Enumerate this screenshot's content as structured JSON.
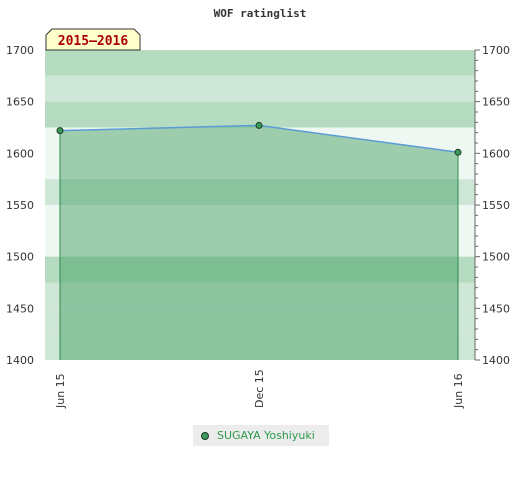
{
  "chart_data": {
    "type": "line",
    "title": "WOF ratinglist",
    "season_label": "2015–2016",
    "x_labels": [
      "Jun 15",
      "Dec 15",
      "Jun 16"
    ],
    "y_ticks": [
      1700,
      1650,
      1600,
      1550,
      1500,
      1450,
      1400
    ],
    "ylim": [
      1400,
      1700
    ],
    "grid": true,
    "legend_position": "bottom-center",
    "series": [
      {
        "name": "SUGAYA Yoshiyuki",
        "color": "#3a9a5a",
        "line_color": "#5b9bd5",
        "points": [
          {
            "x": "Jun 15",
            "y": 1622
          },
          {
            "x": "Dec 15",
            "y": 1627
          },
          {
            "x": "Jun 16",
            "y": 1601
          }
        ]
      }
    ]
  }
}
